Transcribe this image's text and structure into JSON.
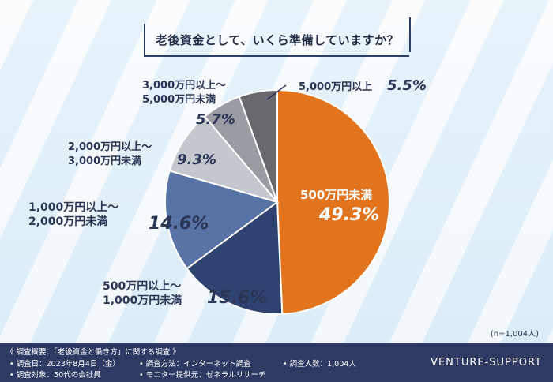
{
  "chart_data": {
    "type": "pie",
    "title": "老後資金として、いくら準備していますか？",
    "slices": [
      {
        "label": "500万円未満",
        "value": 49.3,
        "pct_text": "49.3%",
        "color": "#e2741e"
      },
      {
        "label": "500万円以上〜\n1,000万円未満",
        "value": 15.6,
        "pct_text": "15.6%",
        "color": "#2f4370"
      },
      {
        "label": "1,000万円以上〜\n2,000万円未満",
        "value": 14.6,
        "pct_text": "14.6%",
        "color": "#5874a6"
      },
      {
        "label": "2,000万円以上〜\n3,000万円未満",
        "value": 9.3,
        "pct_text": "9.3%",
        "color": "#c4c7cd"
      },
      {
        "label": "3,000万円以上〜\n5,000万円未満",
        "value": 5.7,
        "pct_text": "5.7%",
        "color": "#999ca2"
      },
      {
        "label": "5,000万円以上",
        "value": 5.5,
        "pct_text": "5.5%",
        "color": "#67696e"
      }
    ],
    "note": "(n=1,004人)"
  },
  "footer": {
    "survey_title": "《 調査概要：「老後資金と働き方」に関する調査 》",
    "date": "• 調査日：2023年8月4日（金）",
    "target": "• 調査対象：50代の会社員",
    "method": "• 調査方法：インターネット調査",
    "provider": "• モニター提供元：ゼネラルリサーチ",
    "count": "• 調査人数：1,004人",
    "brand": "VENTURE-SUPPORT"
  }
}
